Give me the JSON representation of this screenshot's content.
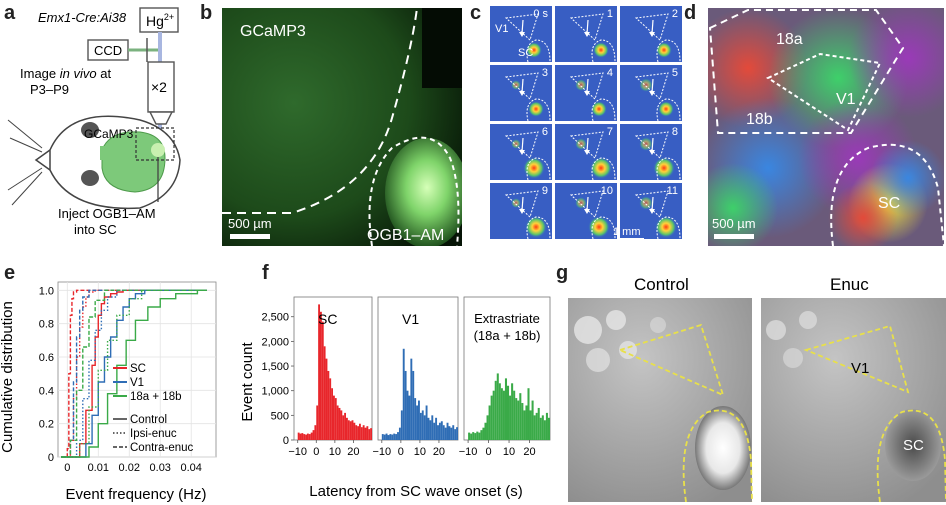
{
  "panels": {
    "a": {
      "label": "a",
      "mouse_line": "Emx1-Cre:Ai38",
      "hg": "Hg",
      "hg_sup": "2+",
      "ccd": "CCD",
      "objective": "×2",
      "image_line1_pre": "Image ",
      "image_line1_it": "in vivo",
      "image_line1_post": " at",
      "image_line2": "P3–P9",
      "gcamp": "GCaMP3",
      "inject_line1": "Inject OGB1–AM",
      "inject_line2": "into SC"
    },
    "b": {
      "label": "b",
      "gcamp": "GCaMP3",
      "ogb": "OGB1–AM",
      "scale": "500 µm"
    },
    "c": {
      "label": "c",
      "frames": [
        "0 s",
        "1",
        "2",
        "3",
        "4",
        "5",
        "6",
        "7",
        "8",
        "9",
        "10",
        "11"
      ],
      "v1": "V1",
      "sc": "SC",
      "scale": "1 mm"
    },
    "d": {
      "label": "d",
      "r18a": "18a",
      "r18b": "18b",
      "v1": "V1",
      "sc": "SC",
      "scale": "500 µm"
    },
    "e": {
      "label": "e",
      "ylabel": "Cumulative distribution",
      "xlabel": "Event frequency (Hz)",
      "legend_regions": [
        "SC",
        "V1",
        "18a + 18b"
      ],
      "legend_conditions": [
        "Control",
        "Ipsi-enuc",
        "Contra-enuc"
      ]
    },
    "f": {
      "label": "f",
      "ylabel": "Event count",
      "xlabel": "Latency from SC wave onset (s)",
      "titles": [
        "SC",
        "V1"
      ],
      "title3_line1": "Extrastriate",
      "title3_line2": "(18a + 18b)"
    },
    "g": {
      "label": "g",
      "control": "Control",
      "enuc": "Enuc",
      "v1": "V1",
      "sc": "SC"
    }
  },
  "chart_data": [
    {
      "type": "line",
      "panel": "e",
      "xlabel": "Event frequency (Hz)",
      "ylabel": "Cumulative distribution",
      "xlim": [
        -0.003,
        0.048
      ],
      "ylim": [
        0,
        1.05
      ],
      "xticks": [
        0,
        0.01,
        0.02,
        0.03,
        0.04
      ],
      "xtick_labels": [
        "0",
        "0.01",
        "0.02",
        "0.03",
        "0.04"
      ],
      "yticks": [
        0,
        0.2,
        0.4,
        0.6,
        0.8,
        1.0
      ],
      "ytick_labels": [
        "0",
        "0.2",
        "0.4",
        "0.6",
        "0.8",
        "1.0"
      ],
      "grid": true,
      "colors": {
        "SC": "#e8262b",
        "V1": "#2f6db5",
        "18a + 18b": "#3aaa48"
      },
      "series": [
        {
          "name": "SC",
          "condition": "Control",
          "color": "#e8262b",
          "dash": "solid",
          "x": [
            0.004,
            0.006,
            0.008,
            0.009,
            0.01,
            0.011,
            0.012,
            0.014,
            0.016,
            0.018
          ],
          "y": [
            0.08,
            0.28,
            0.55,
            0.72,
            0.85,
            0.92,
            0.96,
            0.98,
            0.99,
            1.0
          ]
        },
        {
          "name": "SC",
          "condition": "Ipsi-enuc",
          "color": "#e8262b",
          "dash": "dotted",
          "x": [
            0.001,
            0.002,
            0.003,
            0.004,
            0.005,
            0.006,
            0.007,
            0.009
          ],
          "y": [
            0.1,
            0.35,
            0.6,
            0.78,
            0.9,
            0.96,
            0.99,
            1.0
          ]
        },
        {
          "name": "SC",
          "condition": "Contra-enuc",
          "color": "#e8262b",
          "dash": "dashed",
          "x": [
            0.0,
            0.0005,
            0.001,
            0.0015,
            0.002,
            0.003
          ],
          "y": [
            0.05,
            0.5,
            0.85,
            0.95,
            0.99,
            1.0
          ]
        },
        {
          "name": "V1",
          "condition": "Control",
          "color": "#2f6db5",
          "dash": "solid",
          "x": [
            0.006,
            0.008,
            0.01,
            0.012,
            0.014,
            0.016,
            0.018,
            0.02,
            0.022,
            0.025
          ],
          "y": [
            0.08,
            0.25,
            0.45,
            0.6,
            0.72,
            0.82,
            0.9,
            0.95,
            0.98,
            1.0
          ]
        },
        {
          "name": "V1",
          "condition": "Ipsi-enuc",
          "color": "#2f6db5",
          "dash": "dotted",
          "x": [
            0.003,
            0.005,
            0.007,
            0.009,
            0.011,
            0.013,
            0.016
          ],
          "y": [
            0.1,
            0.35,
            0.58,
            0.76,
            0.88,
            0.96,
            1.0
          ]
        },
        {
          "name": "V1",
          "condition": "Contra-enuc",
          "color": "#2f6db5",
          "dash": "dashed",
          "x": [
            0.001,
            0.002,
            0.003,
            0.004,
            0.005,
            0.007
          ],
          "y": [
            0.1,
            0.45,
            0.72,
            0.88,
            0.96,
            1.0
          ]
        },
        {
          "name": "18a + 18b",
          "condition": "Control",
          "color": "#3aaa48",
          "dash": "solid",
          "x": [
            0.007,
            0.01,
            0.013,
            0.016,
            0.019,
            0.022,
            0.026,
            0.03,
            0.035,
            0.042
          ],
          "y": [
            0.06,
            0.2,
            0.38,
            0.55,
            0.7,
            0.82,
            0.9,
            0.95,
            0.98,
            1.0
          ]
        },
        {
          "name": "18a + 18b",
          "condition": "Ipsi-enuc",
          "color": "#3aaa48",
          "dash": "dotted",
          "x": [
            0.004,
            0.007,
            0.01,
            0.013,
            0.016,
            0.02,
            0.024
          ],
          "y": [
            0.08,
            0.3,
            0.52,
            0.7,
            0.85,
            0.95,
            1.0
          ]
        },
        {
          "name": "18a + 18b",
          "condition": "Contra-enuc",
          "color": "#3aaa48",
          "dash": "dashed",
          "x": [
            0.001,
            0.003,
            0.005,
            0.007,
            0.009,
            0.012
          ],
          "y": [
            0.1,
            0.4,
            0.66,
            0.84,
            0.94,
            1.0
          ]
        }
      ]
    },
    {
      "type": "bar",
      "panel": "f",
      "xlabel": "Latency from SC wave onset (s)",
      "ylabel": "Event count",
      "xlim": [
        -12,
        30
      ],
      "ylim": [
        0,
        2900
      ],
      "xticks": [
        -10,
        0,
        10,
        20
      ],
      "xtick_labels": [
        "−10",
        "0",
        "10",
        "20"
      ],
      "yticks": [
        0,
        500,
        1000,
        1500,
        2000,
        2500
      ],
      "ytick_labels": [
        "0",
        "500",
        "1,000",
        "1,500",
        "2,000",
        "2,500"
      ],
      "bin_start": -10,
      "bin_width": 1,
      "series": [
        {
          "name": "SC",
          "color": "#e8262b",
          "values": [
            150,
            130,
            140,
            120,
            110,
            130,
            120,
            150,
            200,
            300,
            700,
            2750,
            2600,
            2400,
            1900,
            1650,
            1400,
            1250,
            1050,
            900,
            850,
            700,
            650,
            600,
            500,
            550,
            450,
            400,
            380,
            400,
            350,
            300,
            280,
            330,
            260,
            300,
            250,
            280,
            220,
            240
          ]
        },
        {
          "name": "V1",
          "color": "#2f6db5",
          "values": [
            120,
            110,
            130,
            100,
            120,
            110,
            130,
            120,
            160,
            250,
            600,
            1850,
            1400,
            1000,
            900,
            1650,
            1400,
            850,
            700,
            800,
            550,
            600,
            500,
            700,
            450,
            400,
            500,
            350,
            450,
            300,
            350,
            380,
            300,
            250,
            350,
            280,
            250,
            300,
            220,
            260
          ]
        },
        {
          "name": "Extrastriate (18a + 18b)",
          "color": "#3aaa48",
          "values": [
            150,
            130,
            160,
            140,
            170,
            150,
            200,
            250,
            350,
            500,
            700,
            900,
            1000,
            1200,
            1350,
            1150,
            1050,
            1000,
            1250,
            1100,
            900,
            1150,
            1000,
            850,
            800,
            950,
            750,
            600,
            700,
            1050,
            600,
            800,
            500,
            550,
            650,
            450,
            500,
            400,
            550,
            450
          ]
        }
      ]
    }
  ]
}
